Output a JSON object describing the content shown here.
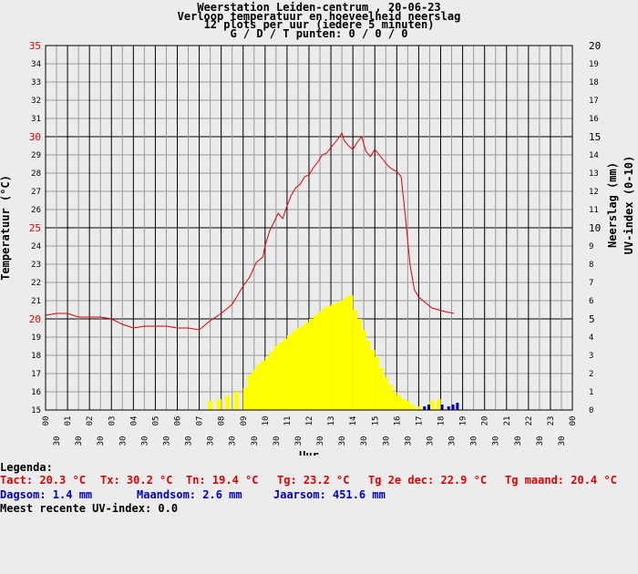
{
  "header": {
    "line1": "Weerstation Leiden-centrum , 20-06-23",
    "line2": "Verloop temperatuur en hoeveelheid neerslag",
    "line3": "12 plots per uur (iedere 5 minuten)",
    "line4": "G / D / T punten: 0 / 0 / 0"
  },
  "colors": {
    "temperature": "#e00000",
    "uv": "#ffff00",
    "rain": "#0000cc",
    "grid": "#999999",
    "major_grid": "#000000"
  },
  "legend": {
    "title": "Legenda:",
    "tact": "Tact: 20.3 °C",
    "tx": "Tx: 30.2 °C",
    "tn": "Tn: 19.4 °C",
    "tg": "Tg: 23.2 °C",
    "tg2": "Tg 2e dec: 22.9 °C",
    "tgm": "Tg maand: 20.4 °C",
    "dagsom": "Dagsom: 1.4 mm",
    "maandsom": "Maandsom: 2.6 mm",
    "jaarsom": "Jaarsom: 451.6 mm",
    "uv": "Meest recente UV-index: 0.0"
  },
  "chart_data": {
    "type": "line",
    "xlabel": "Uur",
    "ylabel_left": "Temperatuur (°C)",
    "ylabel_right1": "Neerslag (mm)",
    "ylabel_right2": "UV-index (0-10)",
    "xlim": [
      0,
      24
    ],
    "ylim_left": [
      15,
      35
    ],
    "ylim_right": [
      0,
      20
    ],
    "hour_labels": [
      "00",
      "01",
      "02",
      "03",
      "04",
      "05",
      "06",
      "07",
      "08",
      "09",
      "10",
      "11",
      "12",
      "13",
      "14",
      "15",
      "16",
      "17",
      "18",
      "19",
      "20",
      "21",
      "22",
      "23",
      "00"
    ],
    "half_label": "30",
    "left_ticks": [
      15,
      16,
      17,
      18,
      19,
      20,
      21,
      22,
      23,
      24,
      25,
      26,
      27,
      28,
      29,
      30,
      31,
      32,
      33,
      34,
      35
    ],
    "right_ticks": [
      0,
      1,
      2,
      3,
      4,
      5,
      6,
      7,
      8,
      9,
      10,
      11,
      12,
      13,
      14,
      15,
      16,
      17,
      18,
      19,
      20
    ],
    "major_left": [
      20,
      25,
      30,
      35
    ],
    "major_right": [
      5,
      10,
      15,
      20
    ],
    "temperature": {
      "x": [
        0,
        0.5,
        1,
        1.5,
        2,
        2.5,
        3,
        3.5,
        4,
        4.5,
        5,
        5.5,
        6,
        6.5,
        7,
        7.5,
        8,
        8.5,
        9,
        9.3,
        9.6,
        9.9,
        10,
        10.2,
        10.4,
        10.6,
        10.8,
        11,
        11.2,
        11.4,
        11.6,
        11.8,
        12,
        12.2,
        12.4,
        12.6,
        12.8,
        13,
        13.2,
        13.4,
        13.5,
        13.6,
        13.8,
        14,
        14.2,
        14.4,
        14.6,
        14.8,
        15,
        15.2,
        15.4,
        15.6,
        15.8,
        16,
        16.2,
        16.4,
        16.6,
        16.8,
        17,
        17.3,
        17.6,
        17.9,
        18.2,
        18.6
      ],
      "y": [
        20.2,
        20.3,
        20.3,
        20.1,
        20.1,
        20.1,
        20.0,
        19.7,
        19.5,
        19.6,
        19.6,
        19.6,
        19.5,
        19.5,
        19.4,
        19.9,
        20.3,
        20.8,
        21.8,
        22.3,
        23.1,
        23.4,
        24.0,
        24.8,
        25.3,
        25.8,
        25.5,
        26.2,
        26.8,
        27.2,
        27.4,
        27.8,
        27.9,
        28.3,
        28.6,
        29.0,
        29.1,
        29.4,
        29.7,
        30.0,
        30.2,
        29.8,
        29.5,
        29.3,
        29.7,
        30.0,
        29.2,
        28.9,
        29.3,
        29.0,
        28.7,
        28.4,
        28.2,
        28.1,
        27.8,
        25.5,
        23.0,
        21.6,
        21.2,
        20.9,
        20.6,
        20.5,
        20.4,
        20.3
      ]
    },
    "uv_index": {
      "x": [
        7.4,
        7.8,
        8.2,
        8.6,
        9.0,
        9.2,
        9.4,
        9.6,
        9.8,
        10.0,
        10.2,
        10.4,
        10.6,
        10.8,
        11.0,
        11.2,
        11.4,
        11.6,
        11.8,
        12.0,
        12.2,
        12.4,
        12.6,
        12.8,
        13.0,
        13.2,
        13.4,
        13.6,
        13.8,
        14.0,
        14.2,
        14.4,
        14.6,
        14.8,
        15.0,
        15.2,
        15.4,
        15.6,
        15.8,
        16.0,
        16.2,
        16.4,
        16.6,
        16.9,
        17.5,
        17.8
      ],
      "y": [
        0.5,
        0.6,
        0.8,
        1.0,
        1.2,
        1.9,
        2.2,
        2.5,
        2.7,
        2.9,
        3.2,
        3.5,
        3.7,
        3.9,
        4.1,
        4.3,
        4.5,
        4.6,
        4.8,
        5.0,
        5.2,
        5.4,
        5.6,
        5.7,
        5.8,
        5.9,
        6.0,
        6.2,
        6.3,
        5.5,
        5.0,
        4.4,
        3.8,
        3.3,
        2.9,
        2.3,
        1.8,
        1.4,
        1.0,
        0.8,
        0.6,
        0.5,
        0.3,
        0.2,
        0.5,
        0.6
      ]
    },
    "rainfall": {
      "x": [
        17.2,
        17.4,
        18.0,
        18.3,
        18.5,
        18.7
      ],
      "y": [
        0.2,
        0.3,
        0.3,
        0.2,
        0.3,
        0.4
      ]
    },
    "grid": true
  }
}
